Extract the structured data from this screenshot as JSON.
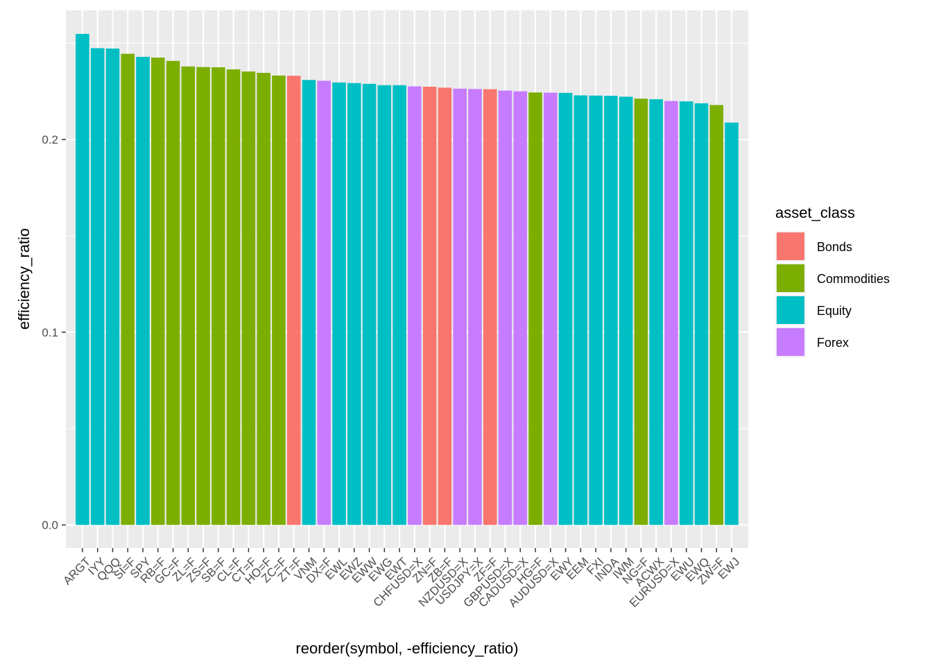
{
  "chart_data": {
    "type": "bar",
    "xlabel": "reorder(symbol, -efficiency_ratio)",
    "ylabel": "efficiency_ratio",
    "ylim": [
      -0.012,
      0.267
    ],
    "yticks": [
      "0.0",
      "0.1",
      "0.2"
    ],
    "grid": true,
    "legend_position": "right",
    "legend_title": "asset_class",
    "categories": [
      "ARGT",
      "IYY",
      "QQQ",
      "SI=F",
      "SPY",
      "RB=F",
      "GC=F",
      "ZL=F",
      "ZS=F",
      "SB=F",
      "CL=F",
      "CT=F",
      "HO=F",
      "ZC=F",
      "ZT=F",
      "VNM",
      "DX=F",
      "EWL",
      "EWZ",
      "EWW",
      "EWG",
      "EWT",
      "CHFUSD=X",
      "ZN=F",
      "ZB=F",
      "NZDUSD=X",
      "USDJPY=X",
      "ZF=F",
      "GBPUSD=X",
      "CADUSD=X",
      "HG=F",
      "AUDUSD=X",
      "EWY",
      "EEM",
      "FXI",
      "INDA",
      "IWM",
      "NG=F",
      "ACWX",
      "EURUSD=X",
      "EWU",
      "EWQ",
      "ZW=F",
      "EWJ"
    ],
    "values": [
      0.2548,
      0.2474,
      0.2472,
      0.2445,
      0.2429,
      0.2425,
      0.2408,
      0.2379,
      0.2376,
      0.2375,
      0.2364,
      0.2353,
      0.2346,
      0.2332,
      0.2331,
      0.2309,
      0.2305,
      0.2296,
      0.2293,
      0.2289,
      0.2282,
      0.2282,
      0.2276,
      0.2274,
      0.2269,
      0.2264,
      0.2262,
      0.2261,
      0.2254,
      0.225,
      0.2244,
      0.2243,
      0.2242,
      0.2229,
      0.2228,
      0.2227,
      0.2222,
      0.2212,
      0.2209,
      0.22,
      0.2198,
      0.2188,
      0.2179,
      0.2088
    ],
    "asset_class": [
      "Equity",
      "Equity",
      "Equity",
      "Commodities",
      "Equity",
      "Commodities",
      "Commodities",
      "Commodities",
      "Commodities",
      "Commodities",
      "Commodities",
      "Commodities",
      "Commodities",
      "Commodities",
      "Bonds",
      "Equity",
      "Forex",
      "Equity",
      "Equity",
      "Equity",
      "Equity",
      "Equity",
      "Forex",
      "Bonds",
      "Bonds",
      "Forex",
      "Forex",
      "Bonds",
      "Forex",
      "Forex",
      "Commodities",
      "Forex",
      "Equity",
      "Equity",
      "Equity",
      "Equity",
      "Equity",
      "Commodities",
      "Equity",
      "Forex",
      "Equity",
      "Equity",
      "Commodities",
      "Equity"
    ],
    "legend": [
      {
        "name": "Bonds",
        "color": "#F8766D"
      },
      {
        "name": "Commodities",
        "color": "#7CAE00"
      },
      {
        "name": "Equity",
        "color": "#00BFC4"
      },
      {
        "name": "Forex",
        "color": "#C77CFF"
      }
    ]
  },
  "colors": {
    "panel_background": "#EBEBEB",
    "grid_major": "#FFFFFF",
    "tick_text": "#4D4D4D"
  }
}
